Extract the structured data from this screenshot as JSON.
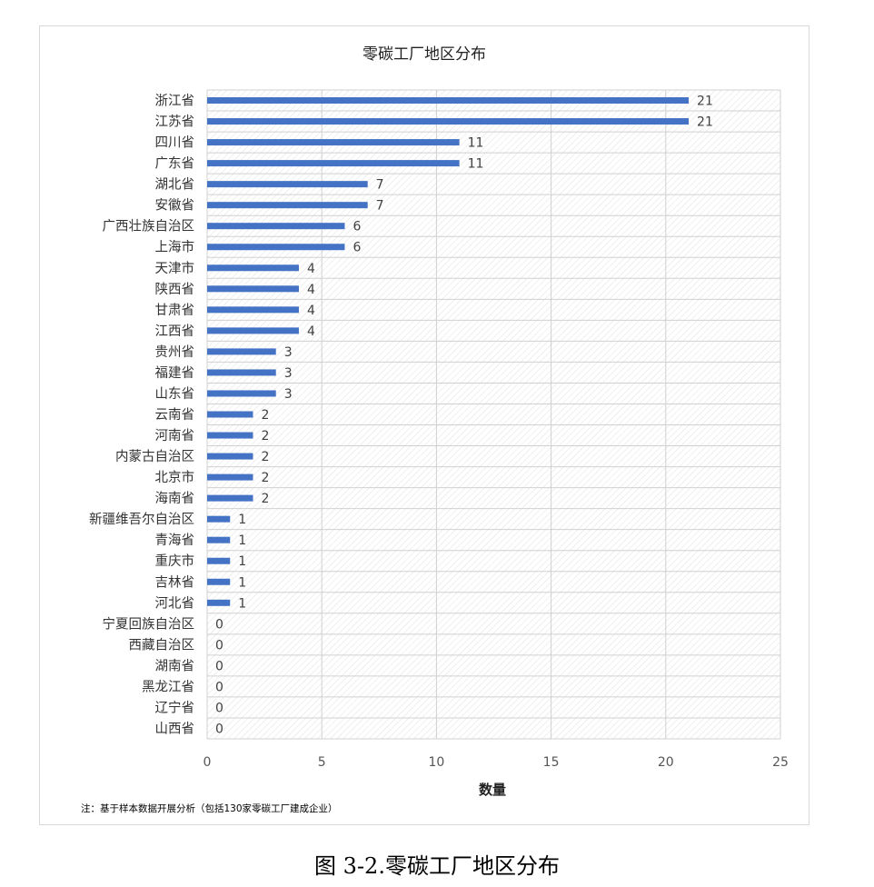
{
  "chart_data": {
    "type": "bar",
    "orientation": "horizontal",
    "title": "零碳工厂地区分布",
    "xlabel": "数量",
    "ylabel": "",
    "xlim": [
      0,
      25
    ],
    "x_ticks": [
      "0",
      "5",
      "10",
      "15",
      "20",
      "25"
    ],
    "grid": true,
    "categories": [
      "浙江省",
      "江苏省",
      "四川省",
      "广东省",
      "湖北省",
      "安徽省",
      "广西壮族自治区",
      "上海市",
      "天津市",
      "陕西省",
      "甘肃省",
      "江西省",
      "贵州省",
      "福建省",
      "山东省",
      "云南省",
      "河南省",
      "内蒙古自治区",
      "北京市",
      "海南省",
      "新疆维吾尔自治区",
      "青海省",
      "重庆市",
      "吉林省",
      "河北省",
      "宁夏回族自治区",
      "西藏自治区",
      "湖南省",
      "黑龙江省",
      "辽宁省",
      "山西省"
    ],
    "values": [
      21,
      21,
      11,
      11,
      7,
      7,
      6,
      6,
      4,
      4,
      4,
      4,
      3,
      3,
      3,
      2,
      2,
      2,
      2,
      2,
      1,
      1,
      1,
      1,
      1,
      0,
      0,
      0,
      0,
      0,
      0
    ],
    "bar_color": "#4472c4",
    "note": "注：基于样本数据开展分析（包括130家零碳工厂建成企业）"
  },
  "caption": "图 3-2.零碳工厂地区分布"
}
